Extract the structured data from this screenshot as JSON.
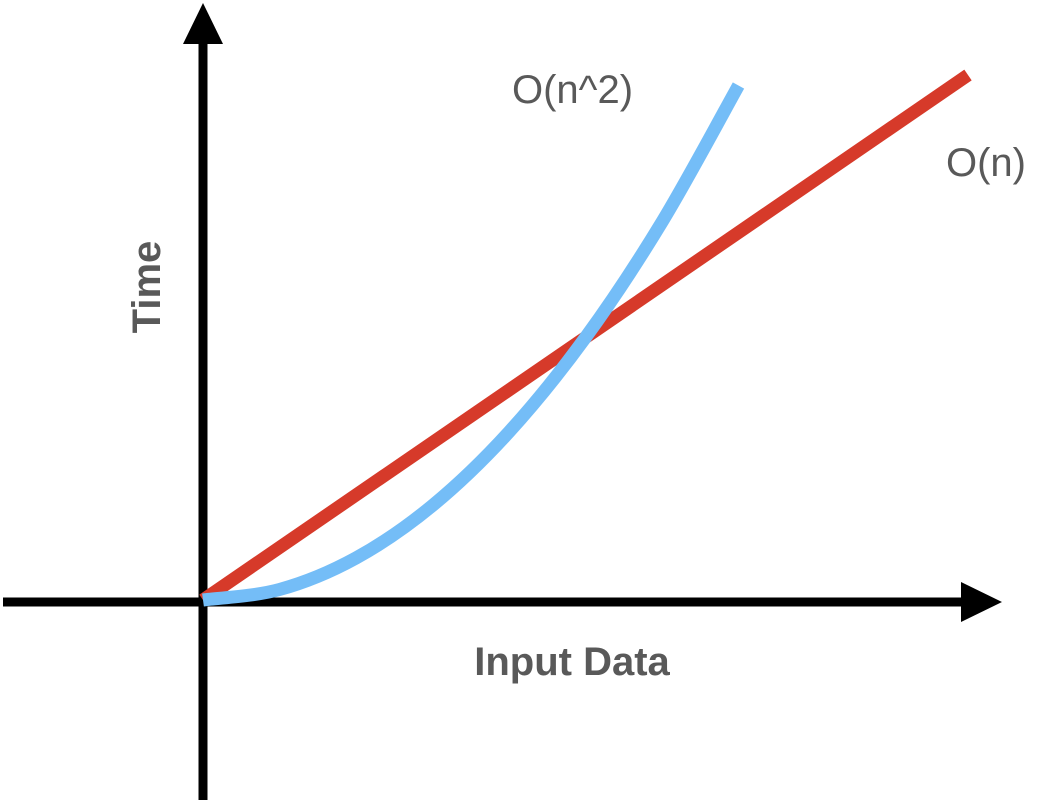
{
  "chart_data": {
    "type": "line",
    "title": "",
    "xlabel": "Input Data",
    "ylabel": "Time",
    "grid": false,
    "legend": "none",
    "axis_color": "#000000",
    "label_color": "#595959",
    "series": [
      {
        "name": "O(n)",
        "color": "#d63a2a",
        "x": [
          0,
          1
        ],
        "y": [
          0,
          1
        ]
      },
      {
        "name": "O(n^2)",
        "color": "#74bdf7",
        "x": [
          0,
          0.1,
          0.2,
          0.3,
          0.4,
          0.5,
          0.6,
          0.7
        ],
        "y": [
          0,
          0.02,
          0.08,
          0.18,
          0.32,
          0.5,
          0.72,
          0.98
        ]
      }
    ]
  }
}
